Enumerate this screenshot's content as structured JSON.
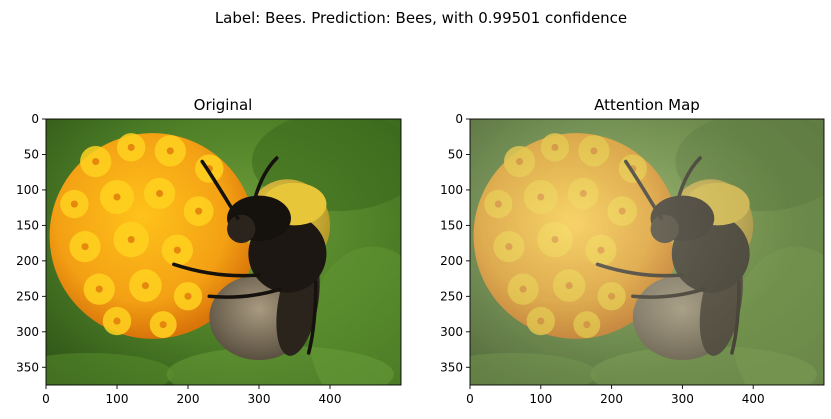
{
  "suptitle": "Label: Bees. Prediction: Bees, with 0.99501 confidence",
  "colors": {
    "sky": "#5a8a2e",
    "leaf_dark": "#2f5418",
    "leaf_light": "#7fb04a",
    "flower_orange": "#f19a12",
    "flower_yellow": "#ffcf1a",
    "flower_deep": "#d96c08",
    "bee_black": "#1a1612",
    "bee_fur_yellow": "#e6c23a",
    "bee_fur_grey": "#8a7d68"
  },
  "chart_data": [
    {
      "type": "image",
      "title": "Original",
      "xticks": [
        "0",
        "100",
        "200",
        "300",
        "400"
      ],
      "yticks": [
        "0",
        "50",
        "100",
        "150",
        "200",
        "250",
        "300",
        "350"
      ],
      "xlim": [
        0,
        500
      ],
      "ylim": [
        375,
        0
      ],
      "subject_icon": "bee-on-orange-flower"
    },
    {
      "type": "image",
      "title": "Attention Map",
      "xticks": [
        "0",
        "100",
        "200",
        "300",
        "400"
      ],
      "yticks": [
        "0",
        "50",
        "100",
        "150",
        "200",
        "250",
        "300",
        "350"
      ],
      "xlim": [
        0,
        500
      ],
      "ylim": [
        375,
        0
      ],
      "subject_icon": "bee-on-orange-flower",
      "overlay": "attention-heatmap"
    }
  ]
}
